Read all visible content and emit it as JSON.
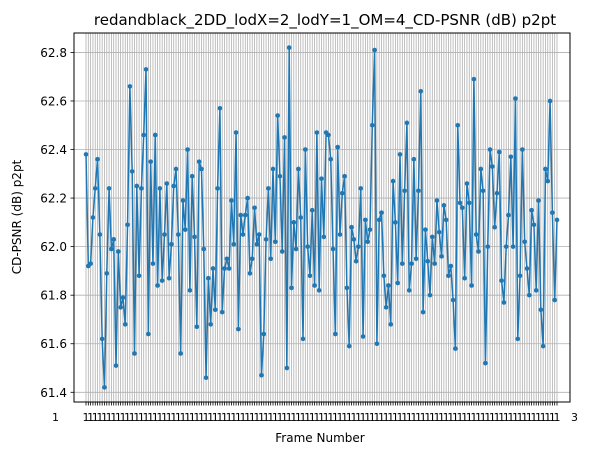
{
  "chart_data": {
    "type": "line",
    "title": "redandblack_2DD_lodX=2_lodY=1_OM=4_CD-PSNR (dB) p2pt",
    "xlabel": "Frame Number",
    "ylabel": "CD-PSNR (dB) p2pt",
    "ylim": [
      61.36,
      62.88
    ],
    "yticks": [
      61.4,
      61.6,
      61.8,
      62.0,
      62.2,
      62.4,
      62.6,
      62.8
    ],
    "ytick_labels": [
      "61.4",
      "61.6",
      "61.8",
      "62.0",
      "62.2",
      "62.4",
      "62.6",
      "62.8"
    ],
    "xtick_labels_visible": [
      "1",
      "3"
    ],
    "grid": true,
    "series": [
      {
        "color": "#1f77b4",
        "marker": "circle",
        "values": [
          62.38,
          61.92,
          61.93,
          62.12,
          62.24,
          62.36,
          62.05,
          61.62,
          61.42,
          61.89,
          62.24,
          61.99,
          62.03,
          61.51,
          61.98,
          61.75,
          61.79,
          61.68,
          62.09,
          62.66,
          62.31,
          61.56,
          62.25,
          61.88,
          62.24,
          62.46,
          62.73,
          61.64,
          62.35,
          61.93,
          62.46,
          61.84,
          62.24,
          61.86,
          62.05,
          62.26,
          61.87,
          62.01,
          62.25,
          62.32,
          62.05,
          61.56,
          62.19,
          62.07,
          62.4,
          61.82,
          62.29,
          62.04,
          61.67,
          62.35,
          62.32,
          61.99,
          61.46,
          61.87,
          61.68,
          61.91,
          61.74,
          62.24,
          62.57,
          61.73,
          61.91,
          61.95,
          61.91,
          62.19,
          62.01,
          62.47,
          61.66,
          62.13,
          62.05,
          62.13,
          62.2,
          61.89,
          61.95,
          62.16,
          62.01,
          62.05,
          61.47,
          61.64,
          62.03,
          62.24,
          61.95,
          62.32,
          62.02,
          62.54,
          62.29,
          61.98,
          62.45,
          61.5,
          62.82,
          61.83,
          62.1,
          61.99,
          62.32,
          62.12,
          61.62,
          62.4,
          62.0,
          61.88,
          62.15,
          61.84,
          62.47,
          61.82,
          62.28,
          62.04,
          62.47,
          62.46,
          62.36,
          61.99,
          61.64,
          62.41,
          62.05,
          62.22,
          62.29,
          61.83,
          61.59,
          62.08,
          62.03,
          61.94,
          62.0,
          62.24,
          61.63,
          62.11,
          62.02,
          62.07,
          62.5,
          62.81,
          61.6,
          62.11,
          62.14,
          61.88,
          61.75,
          61.84,
          61.68,
          62.27,
          62.1,
          61.85,
          62.38,
          61.93,
          62.23,
          62.51,
          61.82,
          61.93,
          62.36,
          61.95,
          62.23,
          62.64,
          61.73,
          62.07,
          61.94,
          61.8,
          62.04,
          61.93,
          62.19,
          62.06,
          61.96,
          62.17,
          62.11,
          61.88,
          61.92,
          61.78,
          61.58,
          62.5,
          62.18,
          62.16,
          61.87,
          62.26,
          62.18,
          61.84,
          62.69,
          62.05,
          61.98,
          62.32,
          62.23,
          61.52,
          62.0,
          62.4,
          62.33,
          62.08,
          62.22,
          62.39,
          61.86,
          61.77,
          62.0,
          62.13,
          62.37,
          62.0,
          62.61,
          61.62,
          61.88,
          62.4,
          62.02,
          61.91,
          61.8,
          62.15,
          62.09,
          61.82,
          62.19,
          61.74,
          61.59,
          62.32,
          62.27,
          62.6,
          62.14,
          61.78,
          62.11
        ]
      }
    ]
  }
}
